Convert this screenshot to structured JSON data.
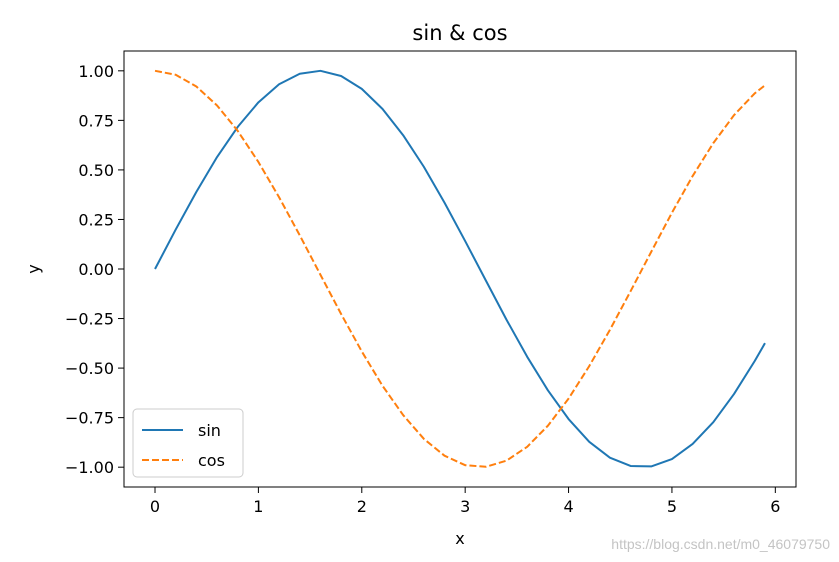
{
  "chart_data": {
    "type": "line",
    "title": "sin & cos",
    "xlabel": "x",
    "ylabel": "y",
    "xlim": [
      -0.3,
      6.2
    ],
    "ylim": [
      -1.1,
      1.1
    ],
    "xticks": [
      0,
      1,
      2,
      3,
      4,
      5,
      6
    ],
    "xtick_labels": [
      "0",
      "1",
      "2",
      "3",
      "4",
      "5",
      "6"
    ],
    "yticks": [
      1.0,
      0.75,
      0.5,
      0.25,
      0.0,
      -0.25,
      -0.5,
      -0.75,
      -1.0
    ],
    "ytick_labels": [
      "1.00",
      "0.75",
      "0.50",
      "0.25",
      "0.00",
      "−0.25",
      "−0.50",
      "−0.75",
      "−1.00"
    ],
    "grid": false,
    "legend": "lower-left",
    "x": [
      0.0,
      0.2,
      0.4,
      0.6,
      0.8,
      1.0,
      1.2,
      1.4,
      1.6,
      1.8,
      2.0,
      2.2,
      2.4,
      2.6,
      2.8,
      3.0,
      3.2,
      3.4,
      3.6,
      3.8,
      4.0,
      4.2,
      4.4,
      4.6,
      4.8,
      5.0,
      5.2,
      5.4,
      5.6,
      5.8,
      5.9
    ],
    "series": [
      {
        "name": "sin",
        "color": "#1f77b4",
        "style": "solid",
        "values": [
          0.0,
          0.199,
          0.389,
          0.565,
          0.717,
          0.841,
          0.932,
          0.985,
          1.0,
          0.974,
          0.909,
          0.808,
          0.675,
          0.516,
          0.335,
          0.141,
          -0.058,
          -0.256,
          -0.443,
          -0.612,
          -0.757,
          -0.872,
          -0.952,
          -0.994,
          -0.996,
          -0.959,
          -0.883,
          -0.773,
          -0.631,
          -0.465,
          -0.374
        ]
      },
      {
        "name": "cos",
        "color": "#ff7f0e",
        "style": "dashed",
        "values": [
          1.0,
          0.98,
          0.921,
          0.825,
          0.697,
          0.54,
          0.362,
          0.17,
          -0.029,
          -0.227,
          -0.416,
          -0.589,
          -0.737,
          -0.857,
          -0.942,
          -0.99,
          -0.998,
          -0.967,
          -0.897,
          -0.791,
          -0.654,
          -0.49,
          -0.307,
          -0.112,
          0.087,
          0.284,
          0.469,
          0.635,
          0.776,
          0.886,
          0.927
        ]
      }
    ]
  },
  "watermark": "https://blog.csdn.net/m0_46079750"
}
